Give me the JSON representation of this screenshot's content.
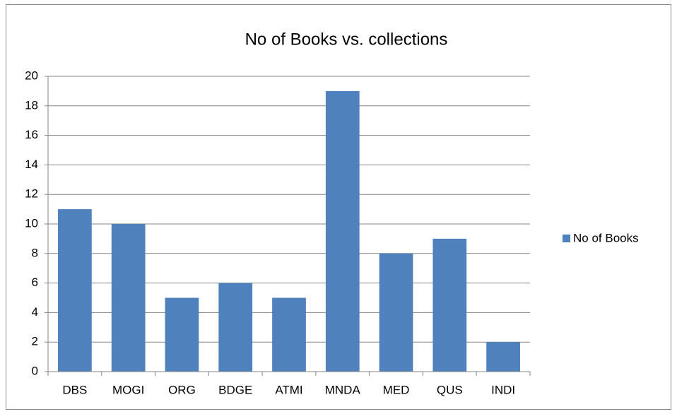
{
  "chart_data": {
    "type": "bar",
    "title": "No of Books vs. collections",
    "categories": [
      "DBS",
      "MOGI",
      "ORG",
      "BDGE",
      "ATMI",
      "MNDA",
      "MED",
      "QUS",
      "INDI"
    ],
    "series": [
      {
        "name": "No of Books",
        "color": "#4f81bd",
        "values": [
          11,
          10,
          5,
          6,
          5,
          19,
          8,
          9,
          2
        ]
      }
    ],
    "ylim": [
      0,
      20
    ],
    "yticks": [
      0,
      2,
      4,
      6,
      8,
      10,
      12,
      14,
      16,
      18,
      20
    ],
    "grid": true,
    "legend": "right"
  }
}
